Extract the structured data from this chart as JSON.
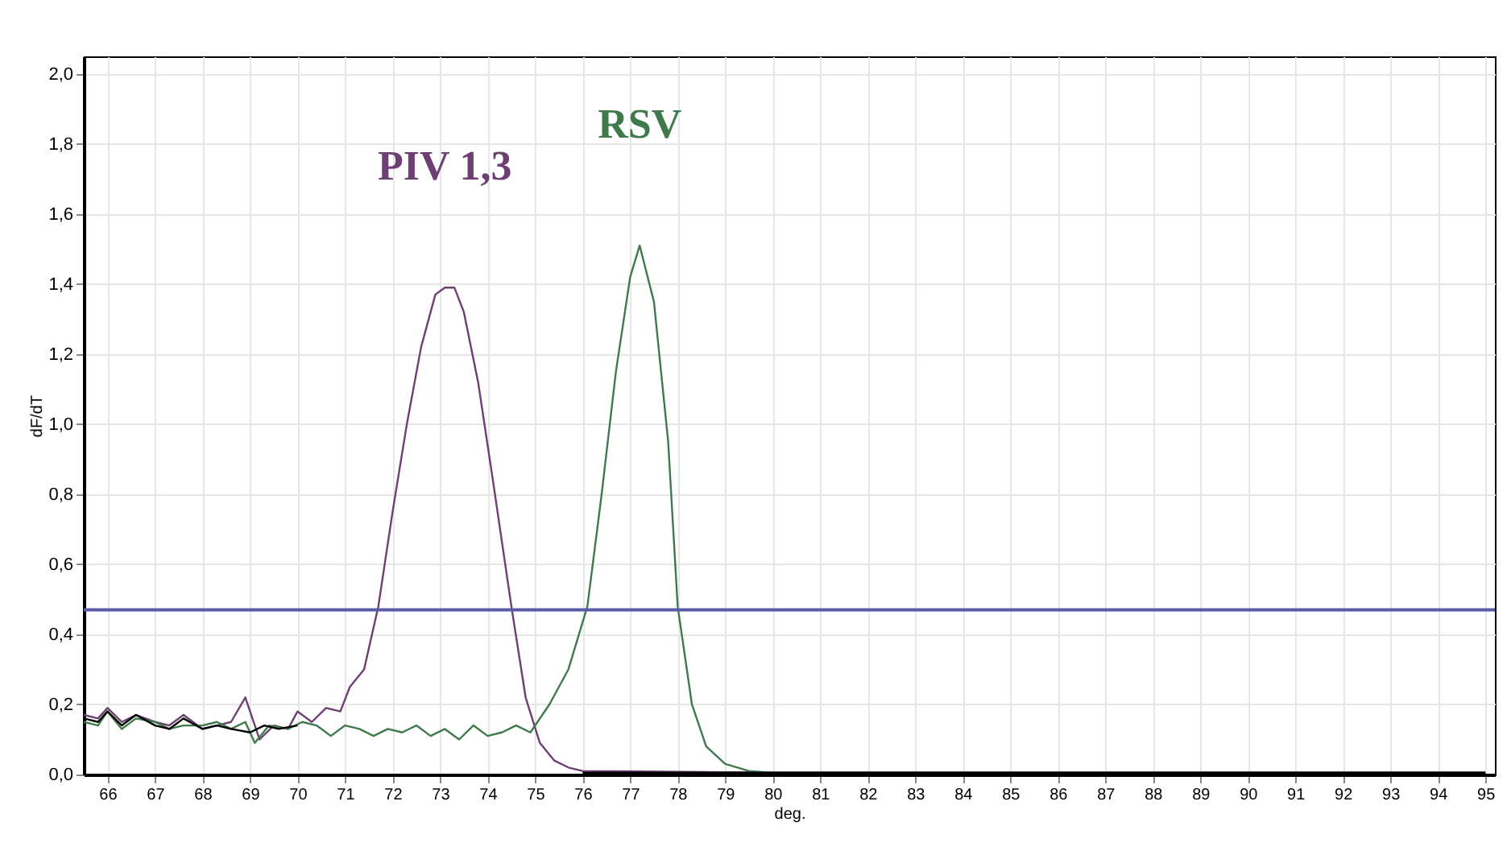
{
  "chart_data": {
    "type": "line",
    "xlabel": "deg.",
    "ylabel": "dF/dT",
    "xlim": [
      65.5,
      95.2
    ],
    "ylim": [
      0,
      2.05
    ],
    "xticks": [
      66,
      67,
      68,
      69,
      70,
      71,
      72,
      73,
      74,
      75,
      76,
      77,
      78,
      79,
      80,
      81,
      82,
      83,
      84,
      85,
      86,
      87,
      88,
      89,
      90,
      91,
      92,
      93,
      94,
      95
    ],
    "yticks": [
      {
        "value": 0,
        "label": "0,0"
      },
      {
        "value": 0.2,
        "label": "0,2"
      },
      {
        "value": 0.4,
        "label": "0,4"
      },
      {
        "value": 0.6,
        "label": "0,6"
      },
      {
        "value": 0.8,
        "label": "0,8"
      },
      {
        "value": 1,
        "label": "1,0"
      },
      {
        "value": 1.2,
        "label": "1,2"
      },
      {
        "value": 1.4,
        "label": "1,4"
      },
      {
        "value": 1.6,
        "label": "1,6"
      },
      {
        "value": 1.8,
        "label": "1,8"
      },
      {
        "value": 2,
        "label": "2,0"
      }
    ],
    "grid": true,
    "ref_lines": [
      {
        "axis": "y",
        "value": 0.47,
        "color": "#5a5aaa"
      }
    ],
    "series": [
      {
        "name": "PIV 1,3",
        "color": "#6e3f73",
        "x": [
          65.5,
          65.8,
          66,
          66.3,
          66.6,
          67,
          67.3,
          67.6,
          68,
          68.3,
          68.6,
          68.9,
          69.2,
          69.5,
          69.8,
          70,
          70.3,
          70.6,
          70.9,
          71.1,
          71.4,
          71.7,
          72,
          72.3,
          72.6,
          72.9,
          73.1,
          73.3,
          73.5,
          73.8,
          74.1,
          74.5,
          74.8,
          75.1,
          75.4,
          75.7,
          76,
          80,
          95
        ],
        "values": [
          0.17,
          0.16,
          0.19,
          0.15,
          0.17,
          0.15,
          0.14,
          0.17,
          0.13,
          0.14,
          0.15,
          0.22,
          0.1,
          0.14,
          0.13,
          0.18,
          0.15,
          0.19,
          0.18,
          0.25,
          0.3,
          0.48,
          0.75,
          1,
          1.22,
          1.37,
          1.39,
          1.39,
          1.32,
          1.12,
          0.85,
          0.48,
          0.22,
          0.09,
          0.04,
          0.02,
          0.01,
          0.005,
          0.005
        ]
      },
      {
        "name": "RSV",
        "color": "#3f7a4c",
        "x": [
          65.5,
          65.8,
          66,
          66.3,
          66.6,
          67,
          67.3,
          67.6,
          68,
          68.3,
          68.6,
          68.9,
          69.1,
          69.4,
          69.8,
          70.1,
          70.4,
          70.7,
          71,
          71.3,
          71.6,
          71.9,
          72.2,
          72.5,
          72.8,
          73.1,
          73.4,
          73.7,
          74,
          74.3,
          74.6,
          74.9,
          75.3,
          75.7,
          76.1,
          76.4,
          76.7,
          77,
          77.2,
          77.5,
          77.8,
          78,
          78.3,
          78.6,
          79,
          79.5,
          80,
          95
        ],
        "values": [
          0.15,
          0.14,
          0.18,
          0.13,
          0.16,
          0.15,
          0.13,
          0.14,
          0.14,
          0.15,
          0.13,
          0.15,
          0.09,
          0.14,
          0.13,
          0.15,
          0.14,
          0.11,
          0.14,
          0.13,
          0.11,
          0.13,
          0.12,
          0.14,
          0.11,
          0.13,
          0.1,
          0.14,
          0.11,
          0.12,
          0.14,
          0.12,
          0.2,
          0.3,
          0.48,
          0.8,
          1.15,
          1.42,
          1.51,
          1.35,
          0.95,
          0.48,
          0.2,
          0.08,
          0.03,
          0.01,
          0.005,
          0.005
        ]
      },
      {
        "color": "#000000",
        "x": [
          65.5,
          65.8,
          66,
          66.3,
          66.6,
          67,
          67.3,
          67.6,
          68,
          68.3,
          68.6,
          69,
          69.3,
          69.6,
          70,
          73,
          76,
          80,
          85,
          90,
          95
        ],
        "values": [
          0.16,
          0.15,
          0.18,
          0.14,
          0.17,
          0.14,
          0.13,
          0.16,
          0.13,
          0.14,
          0.13,
          0.12,
          0.14,
          0.13,
          0.14,
          null,
          0.005,
          0.005,
          0.005,
          0.005,
          0.005
        ]
      }
    ]
  }
}
